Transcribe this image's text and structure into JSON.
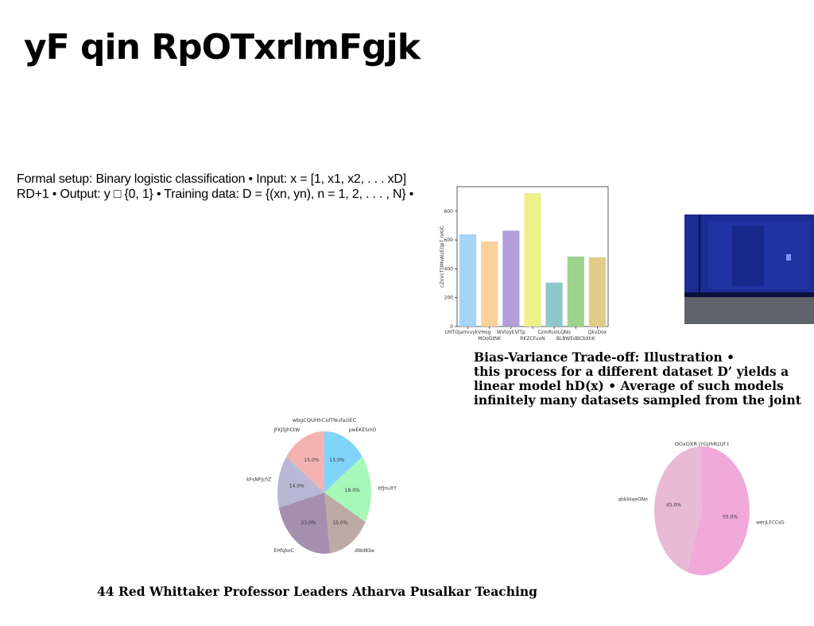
{
  "title": "yF qin RpOTxrlmFgjk",
  "setup_lines": [
    "Formal setup: Binary logistic classification • Input: x = [1, x1, x2, . . . xD]",
    "RD+1 • Output: y □ {0, 1} • Training data: D = {(xn, yn), n = 1, 2, . . . , N} •"
  ],
  "bias_variance_lines": [
    "Bias-Variance Trade-off: Illustration •",
    "this process for a different dataset D’ yields a",
    "linear model hD(x) • Average of such models",
    "infinitely many datasets sampled from the joint"
  ],
  "footer": "44 Red Whittaker Professor Leaders Atharva Pusalkar Teaching",
  "chart_data": [
    {
      "type": "bar",
      "title": "",
      "xlabel": "",
      "ylabel": "cZnVcTOMvAUEDpT rxKiC",
      "categories": [
        "UHTGJamrvykVHog",
        "MOoGtNK",
        "WVloyEVlTp",
        "RKZCFuoN",
        "CzmRUoLQNo",
        "BLBWEdBCbXhK",
        "QkvDox"
      ],
      "values": [
        640,
        590,
        665,
        925,
        305,
        485,
        480
      ],
      "colors": [
        "#a6d4f7",
        "#fad19a",
        "#b39ddb",
        "#eef08a",
        "#8ec8cc",
        "#9ed38e",
        "#e2cd88"
      ],
      "ylim": [
        0,
        970
      ],
      "yticks": [
        0,
        200,
        400,
        600,
        800
      ]
    },
    {
      "type": "pie",
      "title": "wbgCQUHhCidTNufaziEC",
      "labels": [
        "pwEKESmO",
        "bfJnuXY",
        "dWdKbe",
        "EHfqkoC",
        "kFsNPjchZ",
        "JFKJSJhCtW"
      ],
      "values": [
        15.0,
        18.0,
        15.0,
        23.0,
        14.0,
        15.0
      ],
      "pct_labels": [
        "15.0%",
        "18.0%",
        "15.0%",
        "23.0%",
        "14.0%",
        "15.0%"
      ],
      "colors": [
        "#81d4f9",
        "#a6f7b8",
        "#bcaaa4",
        "#a58fae",
        "#b8b8d6",
        "#f4b3b1"
      ]
    },
    {
      "type": "pie",
      "title": "OOxDXR jYGjIhRzUf t",
      "labels": [
        "werjLFCCsG",
        "abkIHaeONo"
      ],
      "values": [
        55.0,
        45.0
      ],
      "pct_labels": [
        "55.0%",
        "45.0%"
      ],
      "colors": [
        "#f0a9d9",
        "#e8bad6"
      ]
    }
  ]
}
